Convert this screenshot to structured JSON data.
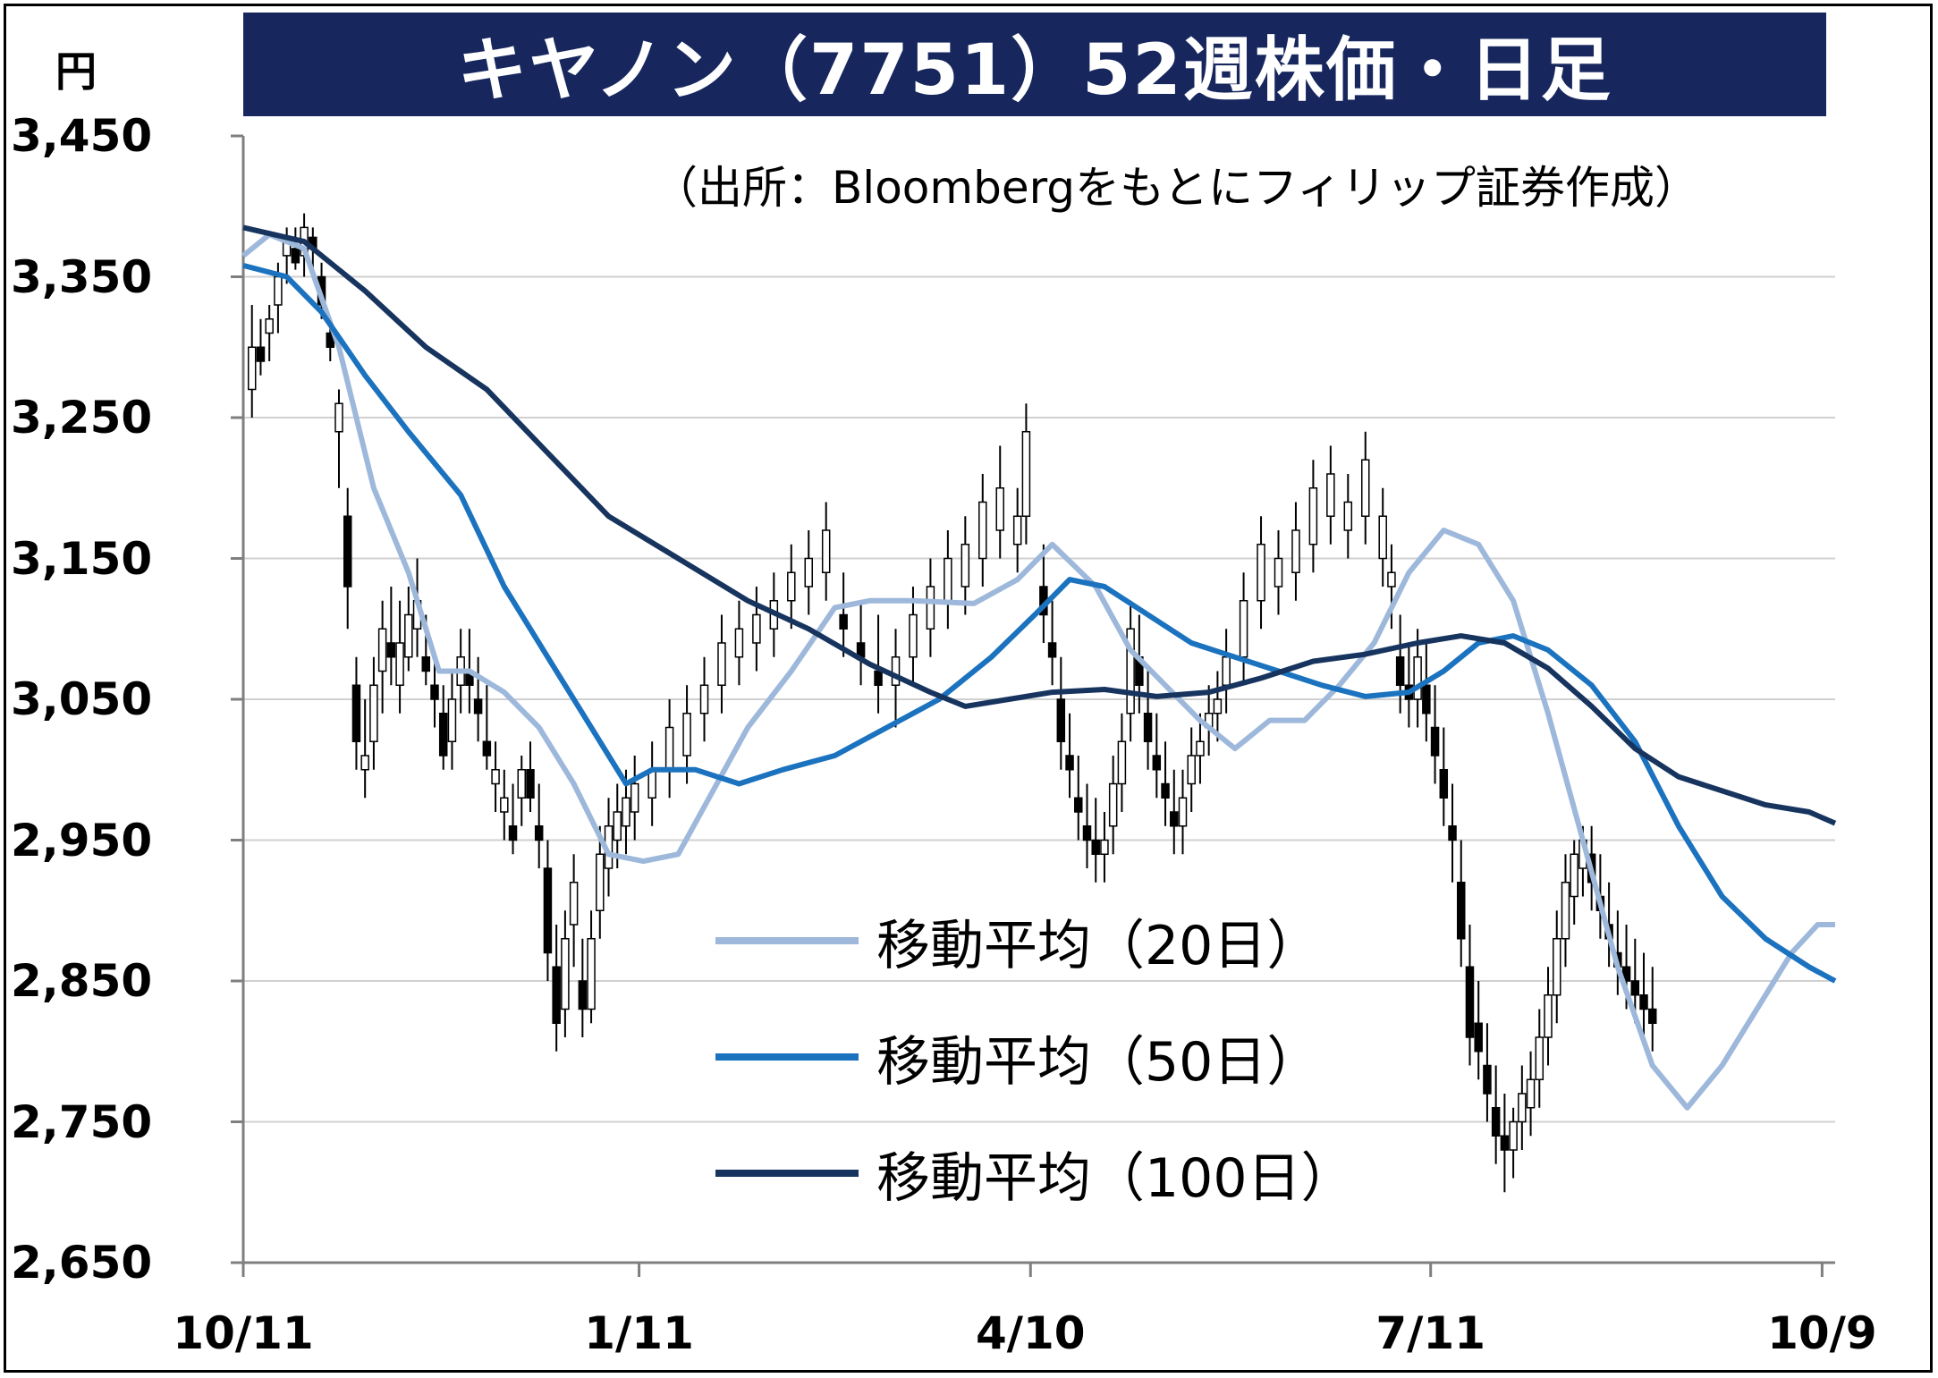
{
  "chart_data": {
    "type": "candlestick",
    "title": "キヤノン（7751）52週株価・日足",
    "source": "（出所：Bloombergをもとにフィリップ証券作成）",
    "ylabel": "円",
    "ylim": [
      2650,
      3450
    ],
    "yticks": [
      "3,450",
      "3,350",
      "3,250",
      "3,150",
      "3,050",
      "2,950",
      "2,850",
      "2,750",
      "2,650"
    ],
    "ytick_values": [
      3450,
      3350,
      3250,
      3150,
      3050,
      2950,
      2850,
      2750,
      2650
    ],
    "xticks": [
      "10/11",
      "1/11",
      "4/10",
      "7/11",
      "10/9"
    ],
    "xtick_days": [
      0,
      91,
      181,
      273,
      363
    ],
    "x_range_days": [
      0,
      366
    ],
    "grid": true,
    "legend_position": "bottom-center",
    "series": [
      {
        "name": "移動平均（20日）",
        "color": "#9db8da",
        "points": [
          [
            0,
            3365
          ],
          [
            6,
            3380
          ],
          [
            14,
            3370
          ],
          [
            22,
            3300
          ],
          [
            30,
            3200
          ],
          [
            38,
            3140
          ],
          [
            45,
            3070
          ],
          [
            52,
            3070
          ],
          [
            60,
            3055
          ],
          [
            68,
            3030
          ],
          [
            76,
            2990
          ],
          [
            84,
            2940
          ],
          [
            92,
            2935
          ],
          [
            100,
            2940
          ],
          [
            108,
            2985
          ],
          [
            116,
            3030
          ],
          [
            126,
            3070
          ],
          [
            136,
            3115
          ],
          [
            144,
            3120
          ],
          [
            154,
            3120
          ],
          [
            168,
            3118
          ],
          [
            178,
            3135
          ],
          [
            186,
            3160
          ],
          [
            196,
            3130
          ],
          [
            204,
            3085
          ],
          [
            212,
            3060
          ],
          [
            220,
            3035
          ],
          [
            228,
            3015
          ],
          [
            236,
            3035
          ],
          [
            244,
            3035
          ],
          [
            252,
            3060
          ],
          [
            260,
            3090
          ],
          [
            268,
            3140
          ],
          [
            276,
            3170
          ],
          [
            284,
            3160
          ],
          [
            292,
            3120
          ],
          [
            300,
            3040
          ],
          [
            308,
            2950
          ],
          [
            316,
            2860
          ],
          [
            324,
            2790
          ],
          [
            332,
            2760
          ],
          [
            340,
            2790
          ],
          [
            348,
            2830
          ],
          [
            356,
            2870
          ],
          [
            362,
            2890
          ],
          [
            366,
            2890
          ]
        ]
      },
      {
        "name": "移動平均（50日）",
        "color": "#1b72be",
        "points": [
          [
            0,
            3358
          ],
          [
            10,
            3350
          ],
          [
            18,
            3325
          ],
          [
            28,
            3280
          ],
          [
            38,
            3240
          ],
          [
            50,
            3195
          ],
          [
            60,
            3130
          ],
          [
            70,
            3080
          ],
          [
            80,
            3030
          ],
          [
            88,
            2990
          ],
          [
            94,
            3000
          ],
          [
            104,
            3000
          ],
          [
            114,
            2990
          ],
          [
            124,
            3000
          ],
          [
            136,
            3010
          ],
          [
            148,
            3030
          ],
          [
            160,
            3050
          ],
          [
            172,
            3080
          ],
          [
            182,
            3110
          ],
          [
            190,
            3135
          ],
          [
            198,
            3130
          ],
          [
            208,
            3110
          ],
          [
            218,
            3090
          ],
          [
            228,
            3080
          ],
          [
            238,
            3070
          ],
          [
            248,
            3060
          ],
          [
            258,
            3052
          ],
          [
            268,
            3055
          ],
          [
            276,
            3070
          ],
          [
            284,
            3090
          ],
          [
            292,
            3095
          ],
          [
            300,
            3085
          ],
          [
            310,
            3060
          ],
          [
            320,
            3020
          ],
          [
            330,
            2960
          ],
          [
            340,
            2910
          ],
          [
            350,
            2880
          ],
          [
            360,
            2860
          ],
          [
            366,
            2850
          ]
        ]
      },
      {
        "name": "移動平均（100日）",
        "color": "#17345f",
        "points": [
          [
            0,
            3385
          ],
          [
            14,
            3375
          ],
          [
            28,
            3340
          ],
          [
            42,
            3300
          ],
          [
            56,
            3270
          ],
          [
            70,
            3225
          ],
          [
            84,
            3180
          ],
          [
            100,
            3150
          ],
          [
            116,
            3120
          ],
          [
            130,
            3100
          ],
          [
            144,
            3075
          ],
          [
            158,
            3055
          ],
          [
            166,
            3045
          ],
          [
            176,
            3050
          ],
          [
            186,
            3055
          ],
          [
            198,
            3057
          ],
          [
            210,
            3052
          ],
          [
            222,
            3055
          ],
          [
            234,
            3065
          ],
          [
            246,
            3077
          ],
          [
            258,
            3082
          ],
          [
            270,
            3090
          ],
          [
            280,
            3095
          ],
          [
            290,
            3090
          ],
          [
            300,
            3072
          ],
          [
            310,
            3045
          ],
          [
            320,
            3015
          ],
          [
            330,
            2995
          ],
          [
            340,
            2985
          ],
          [
            350,
            2975
          ],
          [
            360,
            2970
          ],
          [
            366,
            2962
          ]
        ]
      }
    ],
    "candles": [
      [
        2,
        3270,
        3330,
        3250,
        3300
      ],
      [
        4,
        3300,
        3320,
        3280,
        3290
      ],
      [
        6,
        3310,
        3330,
        3290,
        3320
      ],
      [
        8,
        3330,
        3360,
        3310,
        3350
      ],
      [
        10,
        3365,
        3385,
        3345,
        3375
      ],
      [
        12,
        3370,
        3385,
        3355,
        3360
      ],
      [
        14,
        3365,
        3395,
        3350,
        3385
      ],
      [
        16,
        3378,
        3385,
        3355,
        3370
      ],
      [
        18,
        3350,
        3360,
        3320,
        3330
      ],
      [
        20,
        3310,
        3320,
        3290,
        3300
      ],
      [
        22,
        3240,
        3270,
        3200,
        3260
      ],
      [
        24,
        3180,
        3200,
        3100,
        3130
      ],
      [
        26,
        3060,
        3080,
        3000,
        3020
      ],
      [
        28,
        3000,
        3050,
        2980,
        3010
      ],
      [
        30,
        3020,
        3080,
        3000,
        3060
      ],
      [
        32,
        3070,
        3120,
        3040,
        3100
      ],
      [
        34,
        3090,
        3130,
        3060,
        3080
      ],
      [
        36,
        3060,
        3120,
        3040,
        3090
      ],
      [
        38,
        3080,
        3130,
        3070,
        3110
      ],
      [
        40,
        3100,
        3150,
        3080,
        3120
      ],
      [
        42,
        3080,
        3110,
        3060,
        3070
      ],
      [
        44,
        3060,
        3080,
        3030,
        3050
      ],
      [
        46,
        3040,
        3060,
        3000,
        3010
      ],
      [
        48,
        3020,
        3070,
        3000,
        3050
      ],
      [
        50,
        3060,
        3100,
        3040,
        3080
      ],
      [
        52,
        3070,
        3100,
        3040,
        3060
      ],
      [
        54,
        3050,
        3080,
        3020,
        3040
      ],
      [
        56,
        3020,
        3060,
        3000,
        3010
      ],
      [
        58,
        2990,
        3020,
        2970,
        3000
      ],
      [
        60,
        2970,
        3000,
        2950,
        2980
      ],
      [
        62,
        2960,
        2990,
        2940,
        2950
      ],
      [
        64,
        2980,
        3010,
        2960,
        3000
      ],
      [
        66,
        3000,
        3020,
        2970,
        2980
      ],
      [
        68,
        2960,
        2990,
        2930,
        2950
      ],
      [
        70,
        2930,
        2950,
        2850,
        2870
      ],
      [
        72,
        2860,
        2890,
        2800,
        2820
      ],
      [
        74,
        2830,
        2900,
        2810,
        2880
      ],
      [
        76,
        2890,
        2940,
        2860,
        2920
      ],
      [
        78,
        2850,
        2880,
        2810,
        2830
      ],
      [
        80,
        2830,
        2900,
        2820,
        2880
      ],
      [
        82,
        2900,
        2960,
        2880,
        2940
      ],
      [
        84,
        2930,
        2980,
        2910,
        2960
      ],
      [
        86,
        2950,
        2990,
        2930,
        2970
      ],
      [
        88,
        2960,
        3000,
        2940,
        2980
      ],
      [
        90,
        2970,
        3010,
        2950,
        2990
      ],
      [
        94,
        2980,
        3020,
        2960,
        3000
      ],
      [
        98,
        3000,
        3050,
        2980,
        3030
      ],
      [
        102,
        3010,
        3060,
        2990,
        3040
      ],
      [
        106,
        3040,
        3080,
        3020,
        3060
      ],
      [
        110,
        3060,
        3110,
        3040,
        3090
      ],
      [
        114,
        3080,
        3120,
        3060,
        3100
      ],
      [
        118,
        3090,
        3130,
        3070,
        3110
      ],
      [
        122,
        3100,
        3140,
        3080,
        3120
      ],
      [
        126,
        3120,
        3160,
        3100,
        3140
      ],
      [
        130,
        3130,
        3170,
        3110,
        3150
      ],
      [
        134,
        3140,
        3190,
        3120,
        3170
      ],
      [
        138,
        3110,
        3140,
        3080,
        3100
      ],
      [
        142,
        3090,
        3120,
        3060,
        3080
      ],
      [
        146,
        3070,
        3110,
        3040,
        3060
      ],
      [
        150,
        3060,
        3100,
        3030,
        3080
      ],
      [
        154,
        3080,
        3130,
        3060,
        3110
      ],
      [
        158,
        3100,
        3150,
        3080,
        3130
      ],
      [
        162,
        3120,
        3170,
        3100,
        3150
      ],
      [
        166,
        3130,
        3180,
        3110,
        3160
      ],
      [
        170,
        3150,
        3210,
        3130,
        3190
      ],
      [
        174,
        3170,
        3230,
        3150,
        3200
      ],
      [
        178,
        3160,
        3200,
        3140,
        3180
      ],
      [
        180,
        3180,
        3260,
        3160,
        3240
      ],
      [
        184,
        3130,
        3160,
        3090,
        3110
      ],
      [
        186,
        3090,
        3120,
        3060,
        3080
      ],
      [
        188,
        3050,
        3080,
        3000,
        3020
      ],
      [
        190,
        3010,
        3040,
        2980,
        3000
      ],
      [
        192,
        2980,
        3010,
        2950,
        2970
      ],
      [
        194,
        2960,
        2990,
        2930,
        2950
      ],
      [
        196,
        2950,
        2980,
        2920,
        2940
      ],
      [
        198,
        2940,
        2970,
        2920,
        2950
      ],
      [
        200,
        2960,
        3010,
        2940,
        2990
      ],
      [
        202,
        2990,
        3040,
        2970,
        3020
      ],
      [
        204,
        3040,
        3120,
        3020,
        3100
      ],
      [
        206,
        3080,
        3110,
        3040,
        3060
      ],
      [
        208,
        3040,
        3070,
        3000,
        3020
      ],
      [
        210,
        3010,
        3040,
        2980,
        3000
      ],
      [
        212,
        2990,
        3020,
        2960,
        2980
      ],
      [
        214,
        2970,
        3000,
        2940,
        2960
      ],
      [
        216,
        2960,
        3000,
        2940,
        2980
      ],
      [
        218,
        2990,
        3030,
        2970,
        3010
      ],
      [
        220,
        3010,
        3040,
        2990,
        3020
      ],
      [
        222,
        3030,
        3060,
        3010,
        3040
      ],
      [
        224,
        3040,
        3070,
        3020,
        3050
      ],
      [
        226,
        3060,
        3100,
        3040,
        3080
      ],
      [
        230,
        3080,
        3140,
        3060,
        3120
      ],
      [
        234,
        3120,
        3180,
        3100,
        3160
      ],
      [
        238,
        3130,
        3170,
        3110,
        3150
      ],
      [
        242,
        3140,
        3190,
        3120,
        3170
      ],
      [
        246,
        3160,
        3220,
        3140,
        3200
      ],
      [
        250,
        3180,
        3230,
        3160,
        3210
      ],
      [
        254,
        3170,
        3210,
        3150,
        3190
      ],
      [
        258,
        3180,
        3240,
        3160,
        3220
      ],
      [
        262,
        3150,
        3200,
        3130,
        3180
      ],
      [
        264,
        3130,
        3160,
        3100,
        3140
      ],
      [
        266,
        3080,
        3110,
        3040,
        3060
      ],
      [
        268,
        3060,
        3090,
        3030,
        3050
      ],
      [
        270,
        3050,
        3100,
        3030,
        3080
      ],
      [
        272,
        3060,
        3090,
        3020,
        3040
      ],
      [
        274,
        3030,
        3060,
        2990,
        3010
      ],
      [
        276,
        3000,
        3030,
        2960,
        2980
      ],
      [
        278,
        2960,
        2990,
        2920,
        2950
      ],
      [
        280,
        2920,
        2950,
        2860,
        2880
      ],
      [
        282,
        2860,
        2890,
        2790,
        2810
      ],
      [
        284,
        2820,
        2850,
        2780,
        2800
      ],
      [
        286,
        2790,
        2820,
        2750,
        2770
      ],
      [
        288,
        2760,
        2790,
        2720,
        2740
      ],
      [
        290,
        2740,
        2770,
        2700,
        2730
      ],
      [
        292,
        2730,
        2760,
        2710,
        2750
      ],
      [
        294,
        2750,
        2790,
        2730,
        2770
      ],
      [
        296,
        2760,
        2800,
        2740,
        2780
      ],
      [
        298,
        2780,
        2830,
        2760,
        2810
      ],
      [
        300,
        2810,
        2860,
        2790,
        2840
      ],
      [
        302,
        2840,
        2900,
        2820,
        2880
      ],
      [
        304,
        2880,
        2940,
        2860,
        2920
      ],
      [
        306,
        2910,
        2950,
        2890,
        2940
      ],
      [
        308,
        2930,
        2960,
        2910,
        2950
      ],
      [
        310,
        2940,
        2960,
        2900,
        2920
      ],
      [
        312,
        2910,
        2940,
        2880,
        2900
      ],
      [
        314,
        2890,
        2920,
        2860,
        2880
      ],
      [
        316,
        2870,
        2900,
        2840,
        2860
      ],
      [
        318,
        2860,
        2890,
        2830,
        2850
      ],
      [
        320,
        2850,
        2880,
        2820,
        2840
      ],
      [
        322,
        2840,
        2870,
        2810,
        2830
      ],
      [
        324,
        2830,
        2860,
        2800,
        2820
      ]
    ]
  }
}
